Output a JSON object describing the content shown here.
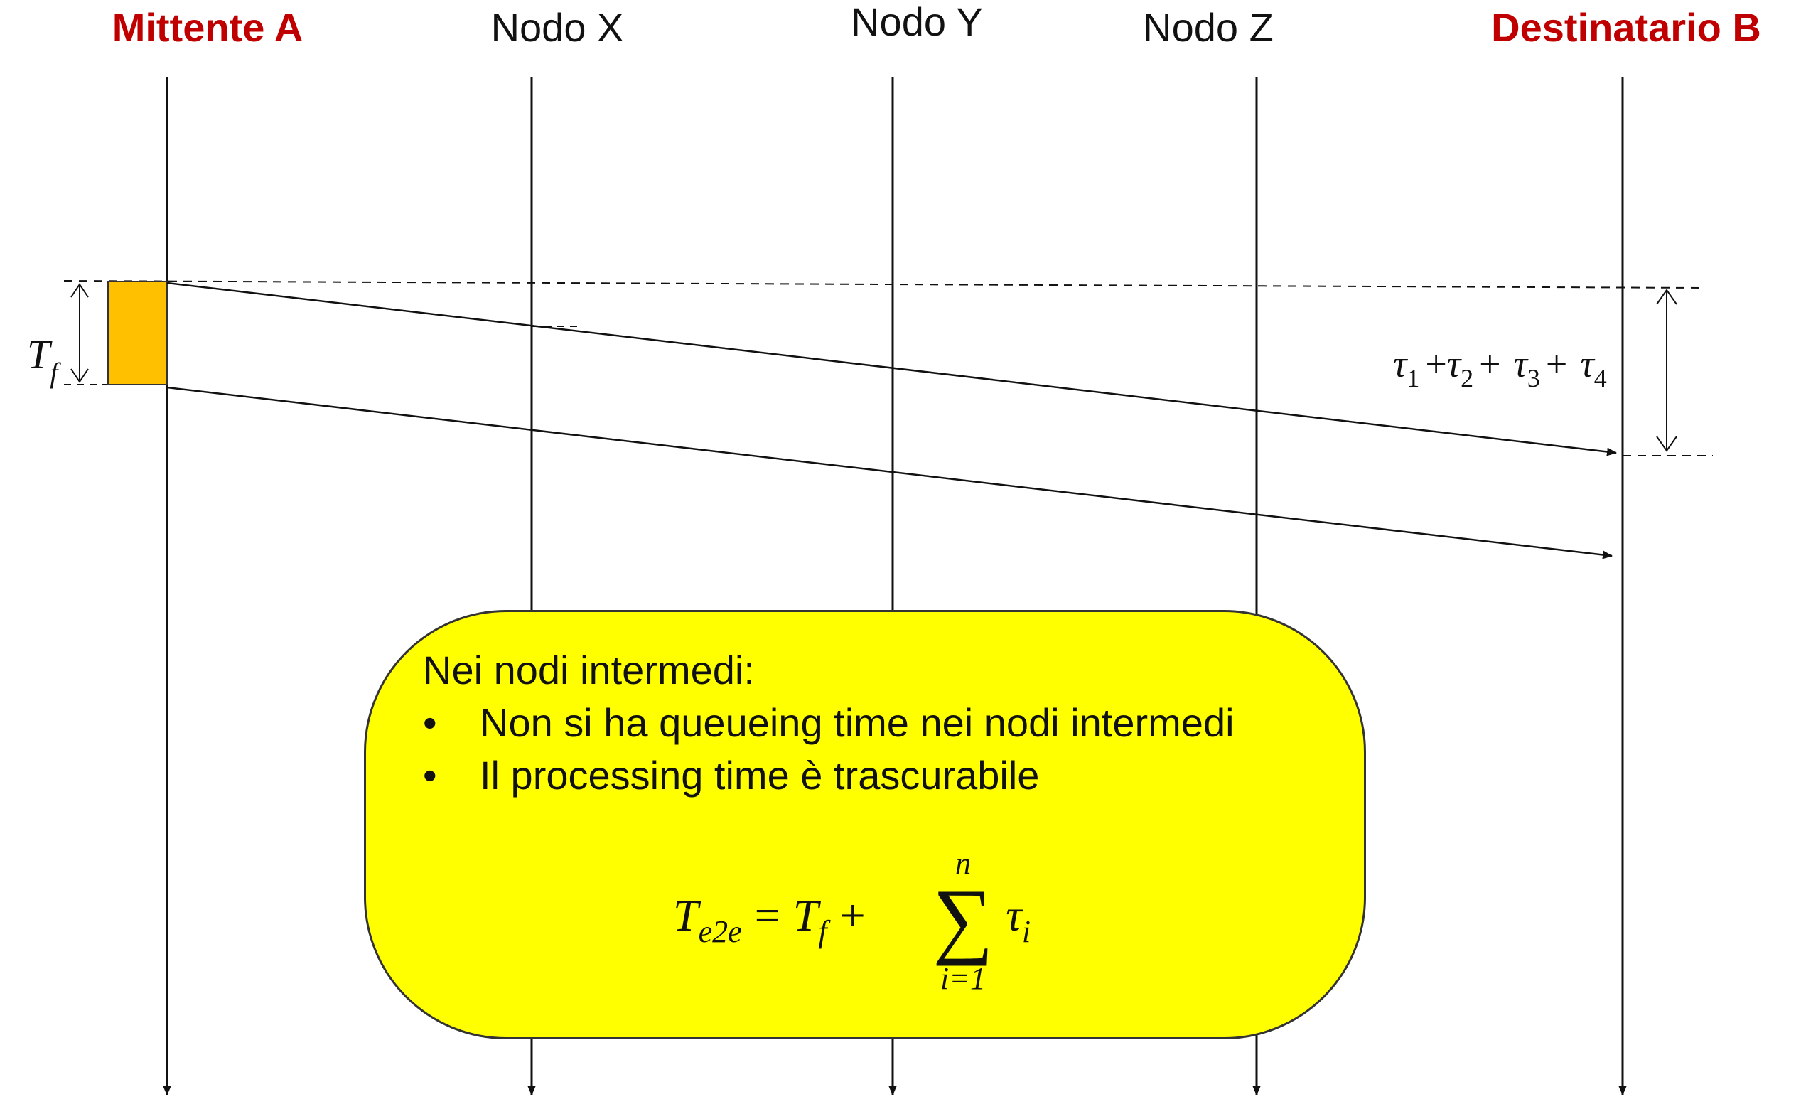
{
  "nodes": {
    "sender": "Mittente A",
    "x": "Nodo X",
    "y": "Nodo Y",
    "z": "Nodo Z",
    "receiver": "Destinatario B"
  },
  "frame_label": {
    "base": "T",
    "sub": "f"
  },
  "propagation_label": {
    "tau": "τ",
    "subs": [
      "1",
      "2",
      "3",
      "4"
    ],
    "plus": "+"
  },
  "note": {
    "heading": "Nei nodi intermedi:",
    "bullet_glyph": "•",
    "bullets": [
      "Non si ha queueing time nei nodi intermedi",
      "Il processing time è trascurabile"
    ],
    "formula": {
      "lhs_base": "T",
      "lhs_sub": "e2e",
      "equals": "=",
      "term_base": "T",
      "term_sub": "f",
      "plus": "+",
      "sum_symbol": "∑",
      "sum_upper": "n",
      "sum_lower": "i=1",
      "summand_base": "τ",
      "summand_sub": "i"
    }
  },
  "colors": {
    "sender_label": "#c00000",
    "frame_fill": "#ffc000",
    "note_fill": "#ffff00"
  }
}
